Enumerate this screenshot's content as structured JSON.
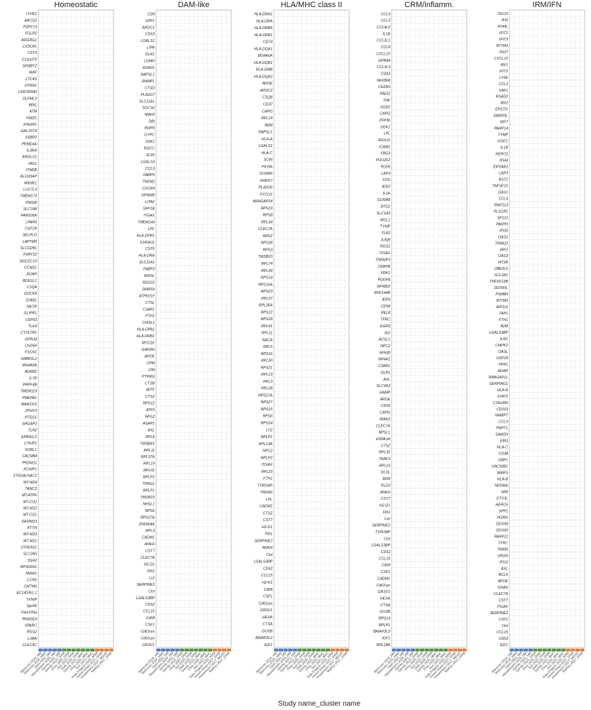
{
  "chart_data": {
    "type": "dot-matrix",
    "x_axis_title": "Study name_cluster name",
    "colors": {
      "blue": "#4a7ab8",
      "green": "#4e8f3a",
      "orange": "#e07b30",
      "grid": "#e3e6ea"
    },
    "studies": [
      {
        "label": "Mancuso 2024_HM",
        "group": "blue"
      },
      {
        "label": "Mancuso 2024_HM2",
        "group": "blue"
      },
      {
        "label": "Olah 2020_HM",
        "group": "blue"
      },
      {
        "label": "Hasselmann 2019_HM",
        "group": "blue"
      },
      {
        "label": "Gerrits 2021_HM",
        "group": "blue"
      },
      {
        "label": "Gerrits 2021_DAM",
        "group": "green"
      },
      {
        "label": "Zhou 2020_DAM",
        "group": "green"
      },
      {
        "label": "Sun 2023_DAM",
        "group": "green"
      },
      {
        "label": "Olah 2020_DAM",
        "group": "green"
      },
      {
        "label": "Gerrits 2021_MHC",
        "group": "green"
      },
      {
        "label": "Zhou 2020_MHC",
        "group": "green"
      },
      {
        "label": "Sun 2023_MHC",
        "group": "green"
      },
      {
        "label": "Sala Frigerio 2019_ARM",
        "group": "orange"
      },
      {
        "label": "Keren-Shaul 2017_DAM",
        "group": "orange"
      },
      {
        "label": "Krasemann 2017_MGnD",
        "group": "orange"
      },
      {
        "label": "Mathys 2017_DAM",
        "group": "orange"
      }
    ],
    "panels": [
      {
        "title": "Homeostatic",
        "genes": [
          "LYVE1",
          "ABCG2",
          "P2RY13",
          "FOLR2",
          "ADGRG1",
          "CX3CR1",
          "CST3",
          "C12orf75",
          "SFMBT2",
          "MAF",
          "LTC4S",
          "HTRA1",
          "LINC00996",
          "OLFML3",
          "BIN1",
          "ATM",
          "ITM2C",
          "IFNGR1",
          "GAL3ST4",
          "SSBP2",
          "PRMD4A",
          "IL3RA",
          "ARGLU1",
          "IAG1",
          "ITM2B",
          "ALOX5AP",
          "MKNK1",
          "LUC7L3",
          "TMEM173",
          "PNISR",
          "SLC7A8",
          "FAM105A",
          "LPAR6",
          "CSF1R",
          "SELPLG",
          "LAPTM5",
          "SLCO2B1",
          "P2RY12",
          "SIGLEC10",
          "CCND1",
          "AOAH",
          "BOD1L1",
          "C1QA",
          "DOCK8",
          "STAB1",
          "NKTR",
          "GLIPR1",
          "USP53",
          "TLE4",
          "CYSLTR1",
          "GPR34",
          "CH25H",
          "FSCN1",
          "N4BP2L2",
          "MS4A6A",
          "ADRB2",
          "IL7R",
          "PRPF4B",
          "TMEM119",
          "PMEPA1",
          "MARCKS",
          "ZFHX3",
          "PTGS1",
          "SRGAP2",
          "TLN2",
          "EPB41L2",
          "CYFIP1",
          "SORL1",
          "CACNB4",
          "PRDM11",
          "KCNIP1",
          "ST6GALNAC2",
          "MT-ND4",
          "TANC2",
          "MT-ATP6",
          "MT-CO2",
          "MT-ND2",
          "MT-CO1",
          "DENND3",
          "RTTN",
          "MT-ND3",
          "MT-ND1",
          "SYNDIG1",
          "SLC2A5",
          "SSH2",
          "RPS6KA1",
          "Malat1",
          "CCR5",
          "CMTM6",
          "AC140361.1",
          "TXNIP",
          "Gpr56",
          "Fam105a",
          "RNASE4",
          "SPARC",
          "RGS2",
          "LXBA",
          "CLEC4C"
        ]
      },
      {
        "title": "DAM-like",
        "genes": [
          "CD9",
          "SPP1",
          "APOC1",
          "CD63",
          "LGALS1",
          "LIPA",
          "OLR1",
          "LGMN",
          "ASAH1",
          "NAPSL1",
          "RAMP1",
          "CTSD",
          "PLA2G7",
          "SLC11A1",
          "SOCS6",
          "MAF6",
          "DBI",
          "PDPN",
          "GYPC",
          "SSK1",
          "RGCC",
          "SCIN",
          "LGALS3",
          "CCL3",
          "FABP5",
          "TREM2",
          "CXCR4",
          "GPNMB",
          "LITAF",
          "SPP1B",
          "ITGAX",
          "TMEM144",
          "LPL",
          "HLA-DPB1",
          "S100A11",
          "CST6",
          "HLA-DRA",
          "SLC11A1",
          "FABP3",
          "IERSL",
          "RGS16",
          "DHRS9",
          "ATP6V1F",
          "CTSL",
          "C3AR1",
          "FTH1",
          "CHI3L1",
          "HLA-DPA1",
          "HLA-DRB1",
          "MYO1E",
          "GAPDH",
          "APOE",
          "CPM",
          "VIM",
          "PTPRG",
          "CTSB",
          "MITF",
          "CTSZ",
          "RPS12",
          "ATF5",
          "RPS2",
          "ASAP1",
          "AXL",
          "RPL8",
          "TMSB4X",
          "RPL11",
          "RPL37A",
          "RPL19",
          "RPL41",
          "RPLP1",
          "TPRG1",
          "RPLP1",
          "TMSB10",
          "NHSL1",
          "RPS6",
          "RPS27A",
          "ZNF804A",
          "RPL3",
          "CADM1",
          "ANKH",
          "CST7",
          "CLEC7A",
          "H2-D1",
          "Fth1",
          "Lyz",
          "SERPINE2",
          "Ctsl",
          "LGALS3BP",
          "CD52",
          "CCL15",
          "Cd68",
          "CSF1",
          "Cd63-ps",
          "Cd63-ps",
          "GRSV1"
        ]
      },
      {
        "title": "HLA/MHC class II",
        "genes": [
          "HLA-DRA1",
          "HLA-DRA",
          "HLA-DRB5",
          "HLA-DRB1",
          "CD74",
          "HLA-DQA1",
          "MS4A6A",
          "HLA-DQB1",
          "HLA-DMB",
          "HLA-DQA2",
          "APOE",
          "APOC2",
          "C1QB",
          "CD37",
          "CAPG",
          "RPL14",
          "B2M",
          "NAPSL1",
          "HLA-A",
          "LGALS1",
          "HLA-C",
          "SCIN",
          "PILRA",
          "S100A6",
          "DHRS7",
          "PLA2G6",
          "FYCO1",
          "ARHGAP24",
          "RPS19",
          "RPS8",
          "RPL34",
          "CLEC7A",
          "RPS2",
          "RPS28",
          "RPS3",
          "TMSB10",
          "RPL74",
          "RPL39",
          "RPS14",
          "RPS15A",
          "RPS23",
          "RPL37",
          "RPL35A",
          "RPS12",
          "RPS18",
          "RPL41",
          "RPL11",
          "NACA",
          "RPL5",
          "RPS16",
          "RPL30",
          "RPS21",
          "RPL13",
          "RPL3",
          "RPL28",
          "RPS27A",
          "RPS27",
          "RPS15",
          "RPS6",
          "RPS24",
          "LYZ",
          "RPLP1",
          "RPL13A",
          "NPC2",
          "RPLP2",
          "ITGAX",
          "RPL23",
          "FTH1",
          "TYROBP",
          "TREM2",
          "LPL",
          "CADM1",
          "CTSZ",
          "CST7",
          "H2-D1",
          "Fth1",
          "SERPINE2",
          "ANKH",
          "Ctsl",
          "LGALS3BP",
          "CD52",
          "CCL15",
          "H2-K1",
          "Cd68",
          "CSF1",
          "Cd63-ps",
          "GRSV1",
          "HEXA",
          "CTSA",
          "GUSB",
          "BAIAP2L2",
          "IGF1"
        ]
      },
      {
        "title": "CRM/inflamm.",
        "genes": [
          "CCL4",
          "CCL3",
          "CCL4L2",
          "IL1B",
          "CCL3L1",
          "CCL8",
          "CXCL10",
          "GPR84",
          "CCL3L3",
          "CD83",
          "NFKBIA",
          "CH25H",
          "PADI2",
          "TNF",
          "SOD2",
          "CAPG",
          "ZFP36",
          "SGK1",
          "LPL",
          "RGS16",
          "ICAM1",
          "FBG3",
          "POU2F2",
          "PLEK",
          "LAP3",
          "FOS",
          "IER2",
          "IL1A",
          "S100A8",
          "BTG2",
          "SLC1A3",
          "MCL1",
          "TYMP",
          "TLR2",
          "JUNB",
          "RGS1",
          "ITGAX",
          "TNFAIP3",
          "CEBPB",
          "FRK1",
          "PDGFA",
          "NFKBIZ",
          "RNF144B",
          "IER3",
          "CD58",
          "REL8",
          "TFRC",
          "EGR3",
          "ID2",
          "ACSL1",
          "NPC2",
          "NFKBI",
          "NR4A1",
          "C3AR1",
          "OLR1",
          "AXL",
          "SLC3A3",
          "HAMP",
          "APOE",
          "CD69",
          "CAPG",
          "IRAK2",
          "CLEC7A",
          "NPSL1",
          "HSPA1A",
          "CTSZ",
          "RPL35",
          "TRAF3",
          "RPL23",
          "GLUL",
          "B2M",
          "PLD3",
          "ANKH",
          "CST7",
          "H2-D1",
          "Fth1",
          "Lyz",
          "SERPINE2",
          "TYROBP",
          "Ctsl",
          "LGALS3BP",
          "CD52",
          "CCL15",
          "Cd68",
          "CSF1",
          "CADM1",
          "Cd63-ps",
          "GRSV1",
          "HEXA",
          "CTSA",
          "GUSB",
          "RPS14",
          "RPLP1",
          "BAIAP2L2",
          "IGF1",
          "RPL18A"
        ]
      },
      {
        "title": "IRM/IFN",
        "genes": [
          "ISG15",
          "IFI6",
          "IFI44L",
          "IFIT1",
          "IFIT3",
          "IFITM3",
          "IFI27",
          "CXCL10",
          "MX1",
          "IFIT2",
          "LY6E",
          "CCL2",
          "XAF1",
          "RSAD2",
          "MX2",
          "EPSTI1",
          "SAMD9L",
          "IRF7",
          "PARP14",
          "TYMP",
          "STAT1",
          "IL1B",
          "HERC5",
          "IFI44",
          "EIF2AK2",
          "LAP3",
          "BST2",
          "TNFSF10",
          "OAS1",
          "CCL4",
          "RNF213",
          "PLSCR1",
          "SP110",
          "PARP9",
          "IFI35",
          "OAS2",
          "TRIM22",
          "IRF1",
          "OAS3",
          "MT2A",
          "UBE2L6",
          "SCL2A1",
          "TNFSF13B",
          "DDX60L",
          "PSMB9",
          "IFITM2",
          "APOL6",
          "TAP1",
          "FTH1",
          "B2M",
          "LGALS3BP",
          "IL4I1",
          "CMPK2",
          "OASL",
          "USP18",
          "FPR1",
          "ADAR",
          "RABGAP1L",
          "SERPING1",
          "HLA-A",
          "STAT2",
          "C19orf66",
          "CD163",
          "NAMPT",
          "CCL3",
          "PNPT1",
          "SAMD9",
          "EBI3",
          "HLA-C",
          "CD48",
          "GBP1",
          "UNC93B1",
          "WARS",
          "HLA-B",
          "NFKBIA",
          "NMI",
          "DTX3L",
          "HERC6",
          "SPP1",
          "HGMS",
          "DDX58",
          "DDX60",
          "PARP12",
          "TFRC",
          "TRIM5",
          "SRGN",
          "IFI16",
          "AXL",
          "BCL6",
          "APOE",
          "GNAS",
          "CLEC7A",
          "CST7",
          "ITGAX",
          "SERPINE2",
          "CSF1",
          "Ctsl",
          "CCL15",
          "CD63",
          "IGF1"
        ]
      }
    ]
  }
}
